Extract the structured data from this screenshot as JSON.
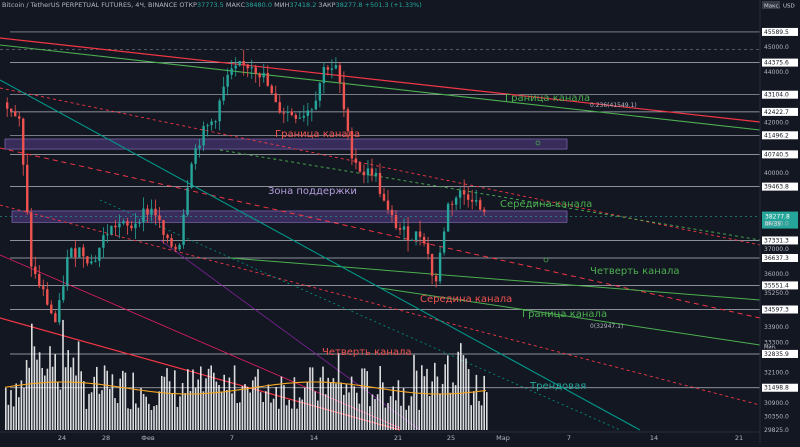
{
  "header": {
    "symbol": "Bitcoin / TetherUS PERPETUAL FUTURES, 4Ч, BINANCE",
    "open_label": "ОТКР",
    "open": "37773.5",
    "high_label": "МАКС",
    "high": "38480.0",
    "low_label": "МИН",
    "low": "37418.2",
    "close_label": "ЗАКР",
    "close": "38277.8",
    "change": "+501.3 (+1.33%)"
  },
  "price_scale": {
    "top_left_label": "Макс.",
    "currency": "USD",
    "tick_labels": [
      "45589.5",
      "45000.0",
      "44375.6",
      "44000.0",
      "43104.0",
      "42422.7",
      "42000.0",
      "41496.2",
      "40740.5",
      "40000.0",
      "39463.8",
      "38277.8",
      "38000.0",
      "37331.3",
      "37000.0",
      "36637.3",
      "36000.0",
      "35551.4",
      "35250.0",
      "34597.3",
      "33900.0",
      "33300.0",
      "32853.8",
      "32835.9",
      "32100.0",
      "31498.8",
      "30900.0",
      "30350.0",
      "29825.0"
    ],
    "highlighted": {
      "price": "38277.8",
      "countdown": "06:39"
    },
    "volume_label": "Мин.",
    "volume_value": "32853.8"
  },
  "time_axis": {
    "tick_labels": [
      "24",
      "28",
      "Фев",
      "7",
      "14",
      "21",
      "25",
      "Мар",
      "7",
      "14",
      "21"
    ]
  },
  "annotations": {
    "upper_border": "Граница канала",
    "fib_upper": "0.236(41549.1)",
    "red_border": "Граница канала",
    "support_zone": "Зона поддержки",
    "mid_green": "Середина канала",
    "quarter_green": "Четверть канала",
    "mid_red": "Середина канала",
    "lower_border_green": "Граница канала",
    "fib_lower": "0(32947.1)",
    "quarter_red": "Четверть канала",
    "trend": "Трендовая"
  },
  "colors": {
    "background": "#131722",
    "up": "#26a69a",
    "down": "#ef5350",
    "volume": "#ffffff",
    "volume_ma": "#f5a623",
    "green_line": "#4caf50",
    "red_line": "#f23645",
    "teal_line": "#009688",
    "zone": "#7e57c2"
  },
  "chart_data": {
    "type": "candlestick",
    "title": "Bitcoin / TetherUS PERPETUAL FUTURES, 4Ч, BINANCE",
    "timeframe": "4Ч",
    "ylim": [
      29825,
      46300
    ],
    "grid": false,
    "price_key_levels": [
      45589.5,
      44375.6,
      43104.0,
      42422.7,
      41496.2,
      40740.5,
      39463.8,
      37331.3,
      36637.3,
      35551.4,
      34597.3,
      32835.9,
      31498.8
    ],
    "support_zone": [
      38050,
      38500
    ],
    "resistance_zone": [
      40950,
      41350
    ],
    "approx_price_path": [
      {
        "date": "Jan 20",
        "price": 42800
      },
      {
        "date": "Jan 21",
        "price": 42000
      },
      {
        "date": "Jan 22",
        "price": 36200
      },
      {
        "date": "Jan 23",
        "price": 35200
      },
      {
        "date": "Jan 24",
        "price": 34000
      },
      {
        "date": "Jan 25",
        "price": 36800
      },
      {
        "date": "Jan 26",
        "price": 37000
      },
      {
        "date": "Jan 27",
        "price": 36400
      },
      {
        "date": "Jan 28",
        "price": 37600
      },
      {
        "date": "Jan 29",
        "price": 38000
      },
      {
        "date": "Jan 30",
        "price": 37800
      },
      {
        "date": "Jan 31",
        "price": 38400
      },
      {
        "date": "Feb 1",
        "price": 38600
      },
      {
        "date": "Feb 2",
        "price": 37200
      },
      {
        "date": "Feb 3",
        "price": 37000
      },
      {
        "date": "Feb 4",
        "price": 40500
      },
      {
        "date": "Feb 5",
        "price": 41600
      },
      {
        "date": "Feb 6",
        "price": 42200
      },
      {
        "date": "Feb 7",
        "price": 43800
      },
      {
        "date": "Feb 8",
        "price": 44200
      },
      {
        "date": "Feb 9",
        "price": 44300
      },
      {
        "date": "Feb 10",
        "price": 43800
      },
      {
        "date": "Feb 11",
        "price": 42600
      },
      {
        "date": "Feb 12",
        "price": 42400
      },
      {
        "date": "Feb 13",
        "price": 42300
      },
      {
        "date": "Feb 14",
        "price": 42700
      },
      {
        "date": "Feb 15",
        "price": 44300
      },
      {
        "date": "Feb 16",
        "price": 44100
      },
      {
        "date": "Feb 17",
        "price": 41000
      },
      {
        "date": "Feb 18",
        "price": 40000
      },
      {
        "date": "Feb 19",
        "price": 40100
      },
      {
        "date": "Feb 20",
        "price": 38500
      },
      {
        "date": "Feb 21",
        "price": 37800
      },
      {
        "date": "Feb 22",
        "price": 37500
      },
      {
        "date": "Feb 23",
        "price": 37600
      },
      {
        "date": "Feb 24",
        "price": 35500
      },
      {
        "date": "Feb 25",
        "price": 38700
      },
      {
        "date": "Feb 26",
        "price": 39200
      },
      {
        "date": "Feb 27",
        "price": 39100
      },
      {
        "date": "Feb 28",
        "price": 38277.8
      }
    ]
  }
}
